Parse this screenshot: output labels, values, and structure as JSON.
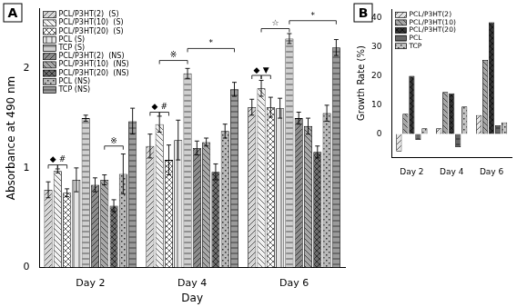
{
  "chart_data": [
    {
      "type": "bar",
      "title": "A",
      "x_label": "Day",
      "y_label": "Absorbance at 490 nm",
      "categories": [
        "Day 2",
        "Day 4",
        "Day 6"
      ],
      "series": [
        {
          "name": "PCL/P3HT(2)  (S)",
          "color": "#d8d8d8",
          "values": [
            0.78,
            1.22,
            1.61
          ],
          "errors": [
            0.08,
            0.12,
            0.08
          ]
        },
        {
          "name": "PCL/P3HT(10)  (S)",
          "color": "#f2f2f2",
          "values": [
            0.97,
            1.44,
            1.8
          ],
          "errors": [
            0.02,
            0.08,
            0.08
          ]
        },
        {
          "name": "PCL/P3HT(20)  (S)",
          "color": "#ffffff",
          "values": [
            0.75,
            1.08,
            1.61
          ],
          "errors": [
            0.04,
            0.15,
            0.1
          ]
        },
        {
          "name": "PCL (S)",
          "color": "#e6e6e6",
          "values": [
            0.88,
            1.28,
            1.6
          ],
          "errors": [
            0.12,
            0.2,
            0.1
          ]
        },
        {
          "name": "TCP (S)",
          "color": "#cfcfcf",
          "values": [
            1.5,
            1.95,
            2.3
          ],
          "errors": [
            0.03,
            0.05,
            0.05
          ]
        },
        {
          "name": "PCL/P3HT(2)  (NS)",
          "color": "#8c8c8c",
          "values": [
            0.83,
            1.2,
            1.5
          ],
          "errors": [
            0.07,
            0.07,
            0.06
          ]
        },
        {
          "name": "PCL/P3HT(10)  (NS)",
          "color": "#a8a8a8",
          "values": [
            0.88,
            1.26,
            1.42
          ],
          "errors": [
            0.05,
            0.04,
            0.08
          ]
        },
        {
          "name": "PCL/P3HT(20)  (NS)",
          "color": "#6e6e6e",
          "values": [
            0.62,
            0.96,
            1.16
          ],
          "errors": [
            0.06,
            0.08,
            0.06
          ]
        },
        {
          "name": "PCL (NS)",
          "color": "#b8b8b8",
          "values": [
            0.94,
            1.37,
            1.55
          ],
          "errors": [
            0.2,
            0.07,
            0.08
          ]
        },
        {
          "name": "TCP (NS)",
          "color": "#9a9a9a",
          "values": [
            1.47,
            1.79,
            2.21
          ],
          "errors": [
            0.13,
            0.07,
            0.08
          ]
        }
      ],
      "ylim": [
        0,
        2.6
      ],
      "yticks": [
        0,
        1,
        2
      ],
      "grid": false,
      "legend": "upper left",
      "annotations": [
        {
          "text": "◆",
          "category": "Day 2",
          "between": [
            "PCL/P3HT(2)  (S)",
            "PCL/P3HT(10)  (S)"
          ],
          "y": 1.03
        },
        {
          "text": "#",
          "category": "Day 2",
          "between": [
            "PCL/P3HT(10)  (S)",
            "PCL/P3HT(20)  (S)"
          ],
          "y": 1.03
        },
        {
          "text": "※",
          "category": "Day 2",
          "between": [
            "PCL/P3HT(10)  (NS)",
            "PCL (NS)"
          ],
          "y": 1.22
        },
        {
          "text": "◆",
          "category": "Day 4",
          "between": [
            "PCL/P3HT(2)  (S)",
            "PCL/P3HT(10)  (S)"
          ],
          "y": 1.56
        },
        {
          "text": "#",
          "category": "Day 4",
          "between": [
            "PCL/P3HT(10)  (S)",
            "PCL/P3HT(20)  (S)"
          ],
          "y": 1.56
        },
        {
          "text": "※",
          "category": "Day 4",
          "between": [
            "PCL/P3HT(10)  (S)",
            "TCP (S)"
          ],
          "y": 2.08
        },
        {
          "text": "*",
          "category": "Day 4",
          "between": [
            "TCP (S)",
            "TCP (NS)"
          ],
          "y": 2.2
        },
        {
          "text": "◆",
          "category": "Day 6",
          "between": [
            "PCL/P3HT(2)  (S)",
            "PCL/P3HT(10)  (S)"
          ],
          "y": 1.93
        },
        {
          "text": "▼",
          "category": "Day 6",
          "between": [
            "PCL/P3HT(10)  (S)",
            "PCL/P3HT(20)  (S)"
          ],
          "y": 1.93
        },
        {
          "text": "☆",
          "category": "Day 6",
          "between": [
            "PCL/P3HT(10)  (S)",
            "TCP (S)"
          ],
          "y": 2.4
        },
        {
          "text": "*",
          "category": "Day 6",
          "between": [
            "TCP (S)",
            "TCP (NS)"
          ],
          "y": 2.48
        }
      ]
    },
    {
      "type": "bar",
      "title": "B",
      "y_label": "Growth Rate (%)",
      "categories": [
        "Day 2",
        "Day 4",
        "Day 6"
      ],
      "series": [
        {
          "name": "PCL/P3HT(2)",
          "color": "#e6e6e6",
          "values": [
            -6,
            2,
            6.5
          ]
        },
        {
          "name": "PCL/P3HT(10)",
          "color": "#a6a6a6",
          "values": [
            7,
            14.5,
            25.5
          ]
        },
        {
          "name": "PCL/P3HT(20)",
          "color": "#333333",
          "values": [
            20,
            14,
            38.5
          ]
        },
        {
          "name": "PCL",
          "color": "#666666",
          "values": [
            -2,
            -4.5,
            3
          ]
        },
        {
          "name": "TCP",
          "color": "#c4c4c4",
          "values": [
            2,
            9.5,
            4
          ]
        }
      ],
      "ylim": [
        -8,
        43
      ],
      "yticks": [
        0,
        10,
        20,
        30,
        40
      ],
      "grid": false,
      "legend": "upper left"
    }
  ]
}
